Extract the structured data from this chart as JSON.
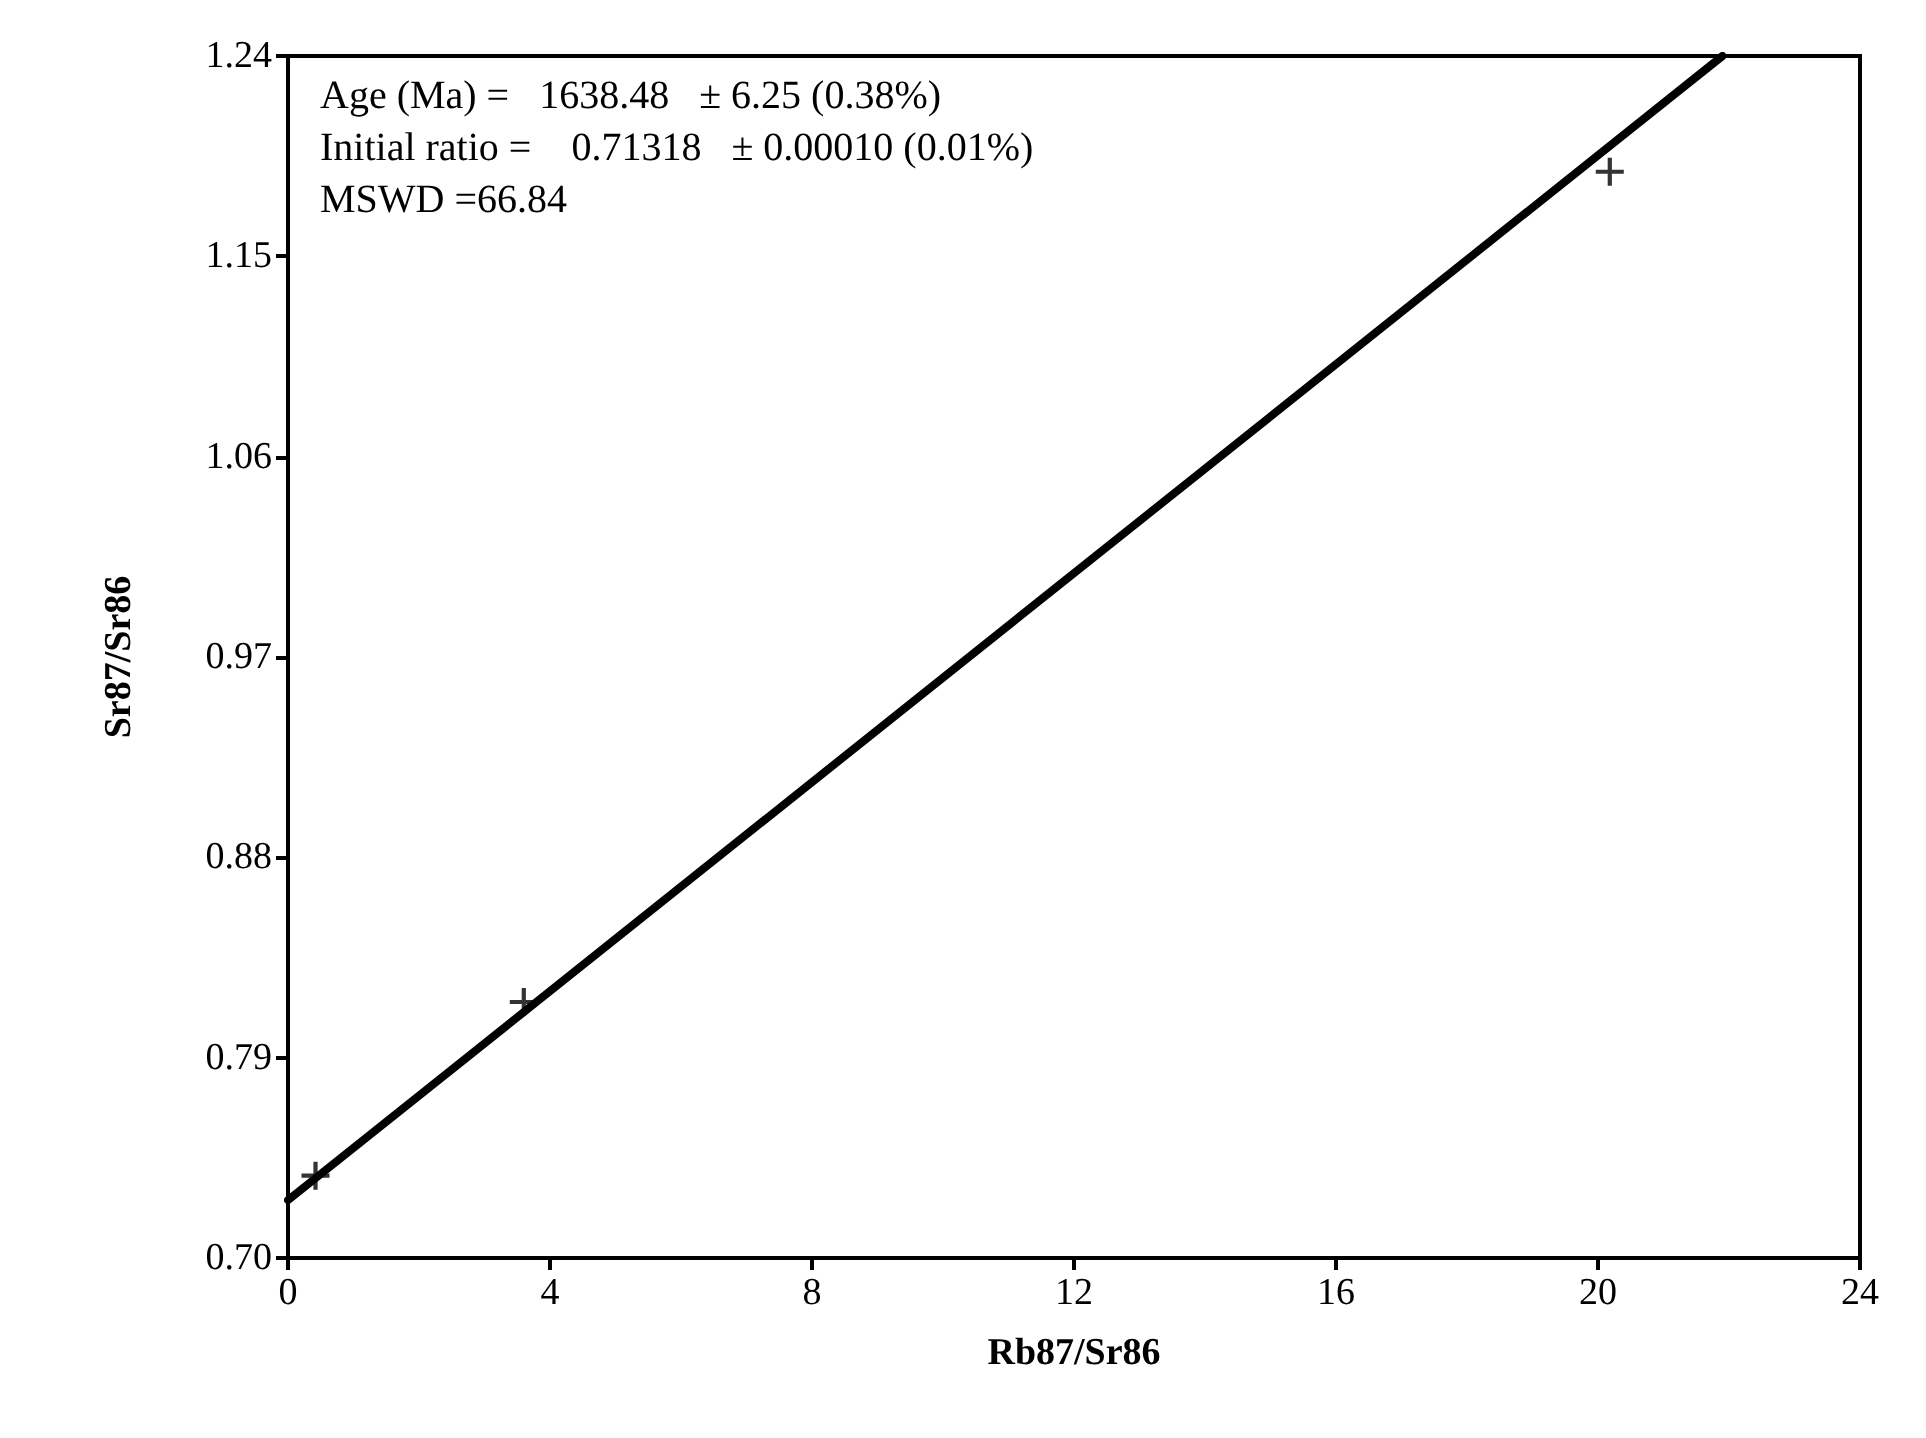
{
  "chart_data": {
    "type": "scatter",
    "xlabel": "Rb87/Sr86",
    "ylabel": "Sr87/Sr86",
    "xlim": [
      0,
      24
    ],
    "xticks": [
      0,
      4,
      8,
      12,
      16,
      20,
      24
    ],
    "ylim": [
      0.7,
      1.24
    ],
    "yticks": [
      {
        "value": 0.7,
        "label": "0.70"
      },
      0.79,
      0.88,
      0.97,
      1.06,
      1.15,
      1.24
    ],
    "marker": "cross",
    "grid": false,
    "annotations": [
      "Age (Ma) =   1638.48   ± 6.25 (0.38%)",
      "Initial ratio =    0.71318   ± 0.00010 (0.01%)",
      "MSWD =66.84"
    ],
    "series": [
      {
        "color": "#000000",
        "x": [
          0.42,
          3.6,
          20.18
        ],
        "values": [
          0.737,
          0.815,
          1.188
        ]
      },
      {
        "type": "line",
        "color": "#000000",
        "marker": "none",
        "x": [
          0,
          21.9
        ],
        "values": [
          0.726,
          1.24
        ]
      }
    ]
  }
}
